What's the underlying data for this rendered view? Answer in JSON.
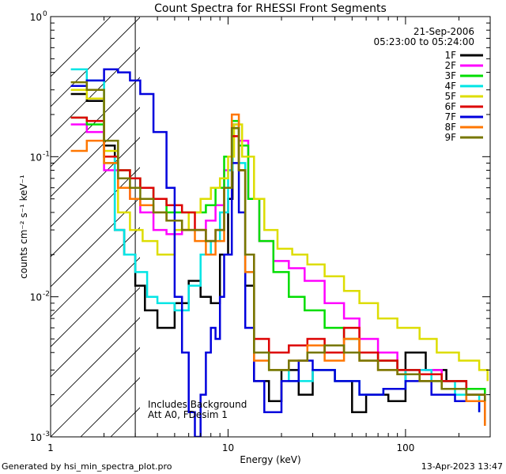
{
  "chart_data": {
    "type": "line",
    "title": "Count Spectra for RHESSI Front Segments",
    "xlabel": "Energy (keV)",
    "ylabel": "counts cm⁻² s⁻¹ keV⁻¹",
    "x_scale": "log",
    "y_scale": "log",
    "xlim": [
      1,
      300
    ],
    "ylim": [
      0.001,
      1
    ],
    "x_ticks": [
      {
        "v": 10,
        "label": "10"
      },
      {
        "v": 100,
        "label": "100"
      }
    ],
    "x_edge_label": "1",
    "y_ticks": [
      {
        "v": 1,
        "base": "10",
        "exp": "0"
      },
      {
        "v": 0.1,
        "base": "10",
        "exp": "-1"
      },
      {
        "v": 0.01,
        "base": "10",
        "exp": "-2"
      },
      {
        "v": 0.001,
        "base": "10",
        "exp": "-3"
      }
    ],
    "attenuator_cutoff_kev": 3,
    "annotations": {
      "date": "21-Sep-2006",
      "time_range": "05:23:00 to 05:24:00",
      "note_line1": "Includes Background",
      "note_line2": "Att A0, FDesim 1"
    },
    "footer_left": "Generated by hsi_min_spectra_plot.pro",
    "footer_right": "13-Apr-2023 13:47",
    "legend_position": "top-right",
    "series": [
      {
        "name": "1F",
        "color": "#000000",
        "points": [
          [
            1.3,
            0.28
          ],
          [
            1.6,
            0.25
          ],
          [
            2.0,
            0.12
          ],
          [
            2.3,
            0.03
          ],
          [
            2.6,
            0.02
          ],
          [
            3.0,
            0.012
          ],
          [
            3.4,
            0.008
          ],
          [
            4.0,
            0.006
          ],
          [
            5.0,
            0.009
          ],
          [
            6.0,
            0.013
          ],
          [
            7.0,
            0.01
          ],
          [
            8.0,
            0.009
          ],
          [
            9.0,
            0.02
          ],
          [
            10.0,
            0.05
          ],
          [
            10.6,
            0.16
          ],
          [
            11.5,
            0.08
          ],
          [
            12.5,
            0.012
          ],
          [
            14.0,
            0.0025
          ],
          [
            17.0,
            0.0018
          ],
          [
            20.0,
            0.003
          ],
          [
            25.0,
            0.002
          ],
          [
            30.0,
            0.003
          ],
          [
            40.0,
            0.0025
          ],
          [
            50.0,
            0.0015
          ],
          [
            60.0,
            0.002
          ],
          [
            80.0,
            0.0018
          ],
          [
            100.0,
            0.004
          ],
          [
            130.0,
            0.003
          ],
          [
            170.0,
            0.0025
          ],
          [
            220.0,
            0.0018
          ],
          [
            280.0,
            0.0012
          ]
        ]
      },
      {
        "name": "2F",
        "color": "#ff00ff",
        "points": [
          [
            1.3,
            0.17
          ],
          [
            1.6,
            0.15
          ],
          [
            2.0,
            0.08
          ],
          [
            2.4,
            0.06
          ],
          [
            2.8,
            0.05
          ],
          [
            3.2,
            0.04
          ],
          [
            3.8,
            0.03
          ],
          [
            4.5,
            0.028
          ],
          [
            5.5,
            0.03
          ],
          [
            6.5,
            0.03
          ],
          [
            7.5,
            0.035
          ],
          [
            8.5,
            0.045
          ],
          [
            9.5,
            0.08
          ],
          [
            10.5,
            0.17
          ],
          [
            11.5,
            0.13
          ],
          [
            13.0,
            0.05
          ],
          [
            15.0,
            0.025
          ],
          [
            18.0,
            0.018
          ],
          [
            22.0,
            0.016
          ],
          [
            27.0,
            0.013
          ],
          [
            35.0,
            0.009
          ],
          [
            45.0,
            0.007
          ],
          [
            55.0,
            0.005
          ],
          [
            70.0,
            0.004
          ],
          [
            90.0,
            0.003
          ],
          [
            120.0,
            0.003
          ],
          [
            160.0,
            0.0025
          ],
          [
            220.0,
            0.002
          ],
          [
            280.0,
            0.0018
          ]
        ]
      },
      {
        "name": "3F",
        "color": "#00dd00",
        "points": [
          [
            1.3,
            0.19
          ],
          [
            1.6,
            0.17
          ],
          [
            2.0,
            0.09
          ],
          [
            2.4,
            0.08
          ],
          [
            2.8,
            0.07
          ],
          [
            3.2,
            0.06
          ],
          [
            3.8,
            0.05
          ],
          [
            4.5,
            0.04
          ],
          [
            5.5,
            0.04
          ],
          [
            6.5,
            0.04
          ],
          [
            7.5,
            0.045
          ],
          [
            8.5,
            0.06
          ],
          [
            9.5,
            0.1
          ],
          [
            10.5,
            0.18
          ],
          [
            11.5,
            0.12
          ],
          [
            13.0,
            0.05
          ],
          [
            15.0,
            0.025
          ],
          [
            18.0,
            0.015
          ],
          [
            22.0,
            0.01
          ],
          [
            27.0,
            0.008
          ],
          [
            35.0,
            0.006
          ],
          [
            45.0,
            0.005
          ],
          [
            55.0,
            0.004
          ],
          [
            70.0,
            0.0035
          ],
          [
            90.0,
            0.003
          ],
          [
            120.0,
            0.0028
          ],
          [
            160.0,
            0.0025
          ],
          [
            220.0,
            0.0022
          ],
          [
            280.0,
            0.002
          ]
        ]
      },
      {
        "name": "4F",
        "color": "#00e5e5",
        "points": [
          [
            1.3,
            0.42
          ],
          [
            1.6,
            0.35
          ],
          [
            2.0,
            0.1
          ],
          [
            2.3,
            0.03
          ],
          [
            2.6,
            0.02
          ],
          [
            3.0,
            0.015
          ],
          [
            3.5,
            0.01
          ],
          [
            4.0,
            0.009
          ],
          [
            5.0,
            0.008
          ],
          [
            6.0,
            0.012
          ],
          [
            7.0,
            0.02
          ],
          [
            8.0,
            0.025
          ],
          [
            9.0,
            0.04
          ],
          [
            10.0,
            0.08
          ],
          [
            10.6,
            0.17
          ],
          [
            11.5,
            0.09
          ],
          [
            12.5,
            0.015
          ],
          [
            14.0,
            0.004
          ],
          [
            17.0,
            0.003
          ],
          [
            22.0,
            0.0025
          ],
          [
            30.0,
            0.003
          ],
          [
            40.0,
            0.0025
          ],
          [
            55.0,
            0.002
          ],
          [
            75.0,
            0.0022
          ],
          [
            100.0,
            0.003
          ],
          [
            140.0,
            0.0025
          ],
          [
            190.0,
            0.002
          ],
          [
            260.0,
            0.0015
          ]
        ]
      },
      {
        "name": "5F",
        "color": "#dddd00",
        "points": [
          [
            1.3,
            0.3
          ],
          [
            1.6,
            0.26
          ],
          [
            2.0,
            0.11
          ],
          [
            2.4,
            0.04
          ],
          [
            2.8,
            0.03
          ],
          [
            3.3,
            0.025
          ],
          [
            4.0,
            0.02
          ],
          [
            5.0,
            0.03
          ],
          [
            6.0,
            0.04
          ],
          [
            7.0,
            0.05
          ],
          [
            8.0,
            0.06
          ],
          [
            9.0,
            0.07
          ],
          [
            10.0,
            0.1
          ],
          [
            10.8,
            0.17
          ],
          [
            12.0,
            0.1
          ],
          [
            14.0,
            0.05
          ],
          [
            16.0,
            0.03
          ],
          [
            19.0,
            0.022
          ],
          [
            23.0,
            0.02
          ],
          [
            28.0,
            0.017
          ],
          [
            35.0,
            0.014
          ],
          [
            45.0,
            0.011
          ],
          [
            55.0,
            0.009
          ],
          [
            70.0,
            0.007
          ],
          [
            90.0,
            0.006
          ],
          [
            120.0,
            0.005
          ],
          [
            150.0,
            0.004
          ],
          [
            200.0,
            0.0035
          ],
          [
            260.0,
            0.003
          ],
          [
            290.0,
            0.0025
          ]
        ]
      },
      {
        "name": "6F",
        "color": "#dd0000",
        "points": [
          [
            1.3,
            0.19
          ],
          [
            1.6,
            0.18
          ],
          [
            2.0,
            0.1
          ],
          [
            2.4,
            0.08
          ],
          [
            2.8,
            0.07
          ],
          [
            3.2,
            0.06
          ],
          [
            3.8,
            0.05
          ],
          [
            4.5,
            0.045
          ],
          [
            5.5,
            0.04
          ],
          [
            6.5,
            0.03
          ],
          [
            7.5,
            0.025
          ],
          [
            8.5,
            0.03
          ],
          [
            9.5,
            0.06
          ],
          [
            10.5,
            0.14
          ],
          [
            11.5,
            0.08
          ],
          [
            12.5,
            0.02
          ],
          [
            14.0,
            0.005
          ],
          [
            17.0,
            0.004
          ],
          [
            22.0,
            0.0045
          ],
          [
            28.0,
            0.005
          ],
          [
            35.0,
            0.004
          ],
          [
            45.0,
            0.006
          ],
          [
            55.0,
            0.004
          ],
          [
            70.0,
            0.0035
          ],
          [
            90.0,
            0.003
          ],
          [
            120.0,
            0.0028
          ],
          [
            160.0,
            0.0025
          ],
          [
            220.0,
            0.002
          ],
          [
            280.0,
            0.0018
          ]
        ]
      },
      {
        "name": "7F",
        "color": "#0000dd",
        "points": [
          [
            1.3,
            0.32
          ],
          [
            1.6,
            0.35
          ],
          [
            2.0,
            0.42
          ],
          [
            2.4,
            0.4
          ],
          [
            2.8,
            0.35
          ],
          [
            3.2,
            0.28
          ],
          [
            3.8,
            0.15
          ],
          [
            4.5,
            0.06
          ],
          [
            5.0,
            0.01
          ],
          [
            5.5,
            0.004
          ],
          [
            6.0,
            0.0015
          ],
          [
            6.5,
            0.001
          ],
          [
            7.0,
            0.002
          ],
          [
            7.5,
            0.004
          ],
          [
            8.0,
            0.006
          ],
          [
            8.5,
            0.005
          ],
          [
            9.0,
            0.01
          ],
          [
            9.5,
            0.02
          ],
          [
            10.5,
            0.09
          ],
          [
            11.5,
            0.04
          ],
          [
            12.5,
            0.006
          ],
          [
            14.0,
            0.0025
          ],
          [
            16.0,
            0.0015
          ],
          [
            20.0,
            0.0025
          ],
          [
            25.0,
            0.0035
          ],
          [
            30.0,
            0.003
          ],
          [
            40.0,
            0.0025
          ],
          [
            55.0,
            0.002
          ],
          [
            75.0,
            0.0022
          ],
          [
            100.0,
            0.0025
          ],
          [
            140.0,
            0.002
          ],
          [
            190.0,
            0.0018
          ],
          [
            260.0,
            0.0015
          ]
        ]
      },
      {
        "name": "8F",
        "color": "#ff7700",
        "points": [
          [
            1.3,
            0.11
          ],
          [
            1.6,
            0.13
          ],
          [
            2.0,
            0.09
          ],
          [
            2.4,
            0.06
          ],
          [
            2.8,
            0.05
          ],
          [
            3.2,
            0.045
          ],
          [
            3.8,
            0.04
          ],
          [
            4.5,
            0.035
          ],
          [
            5.5,
            0.03
          ],
          [
            6.5,
            0.025
          ],
          [
            7.5,
            0.02
          ],
          [
            8.5,
            0.025
          ],
          [
            9.5,
            0.06
          ],
          [
            10.5,
            0.2
          ],
          [
            11.5,
            0.08
          ],
          [
            12.5,
            0.015
          ],
          [
            14.0,
            0.0035
          ],
          [
            17.0,
            0.003
          ],
          [
            22.0,
            0.0035
          ],
          [
            28.0,
            0.0045
          ],
          [
            35.0,
            0.0035
          ],
          [
            45.0,
            0.005
          ],
          [
            55.0,
            0.0035
          ],
          [
            70.0,
            0.003
          ],
          [
            90.0,
            0.0028
          ],
          [
            120.0,
            0.0025
          ],
          [
            160.0,
            0.0022
          ],
          [
            220.0,
            0.0018
          ],
          [
            280.0,
            0.0012
          ]
        ]
      },
      {
        "name": "9F",
        "color": "#777700",
        "points": [
          [
            1.3,
            0.34
          ],
          [
            1.6,
            0.3
          ],
          [
            2.0,
            0.13
          ],
          [
            2.4,
            0.07
          ],
          [
            2.8,
            0.06
          ],
          [
            3.2,
            0.05
          ],
          [
            3.8,
            0.04
          ],
          [
            4.5,
            0.035
          ],
          [
            5.5,
            0.03
          ],
          [
            6.5,
            0.03
          ],
          [
            7.5,
            0.025
          ],
          [
            8.5,
            0.03
          ],
          [
            9.5,
            0.06
          ],
          [
            10.5,
            0.16
          ],
          [
            11.5,
            0.08
          ],
          [
            12.5,
            0.02
          ],
          [
            14.0,
            0.004
          ],
          [
            17.0,
            0.003
          ],
          [
            22.0,
            0.0035
          ],
          [
            28.0,
            0.004
          ],
          [
            35.0,
            0.0045
          ],
          [
            45.0,
            0.004
          ],
          [
            55.0,
            0.0035
          ],
          [
            70.0,
            0.003
          ],
          [
            90.0,
            0.0028
          ],
          [
            120.0,
            0.0025
          ],
          [
            160.0,
            0.0022
          ],
          [
            220.0,
            0.002
          ],
          [
            280.0,
            0.0018
          ]
        ]
      }
    ]
  }
}
